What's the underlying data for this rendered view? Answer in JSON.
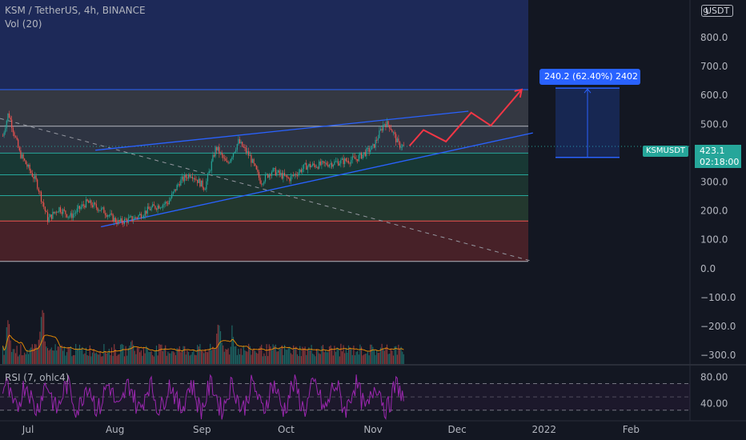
{
  "header": {
    "symbol_line": "KSM / TetherUS, 4h, BINANCE",
    "vol_indicator": "Vol (20)",
    "rsi_indicator": "RSI (7, ohlc4)"
  },
  "price_axis": {
    "currency_button": "USDT",
    "top_tick": "9",
    "ticks": [
      "800.0",
      "700.0",
      "600.0",
      "500.0",
      "300.0",
      "200.0",
      "100.0",
      "0.0",
      "−100.0",
      "−200.0",
      "−300.0"
    ],
    "tick_values": [
      800,
      700,
      600,
      500,
      300,
      200,
      100,
      0,
      -100,
      -200,
      -300
    ],
    "last_price": "423.1",
    "countdown": "02:18:00",
    "symbol_tag": "KSMUSDT"
  },
  "rsi_axis": {
    "ticks": [
      "80.00",
      "40.00"
    ]
  },
  "time_axis": {
    "labels": [
      "Jul",
      "Aug",
      "Sep",
      "Oct",
      "Nov",
      "Dec",
      "2022",
      "Feb"
    ]
  },
  "measure_label": "240.2 (62.40%) 2402",
  "colors": {
    "background": "#131722",
    "up": "#26a69a",
    "down": "#ef5350",
    "trendline": "#2962ff",
    "projection": "#f23645",
    "rsi": "#9c27b0",
    "measure": "#2962ff"
  },
  "chart_data": [
    {
      "type": "candlestick",
      "title": "KSM / TetherUS, 4h, BINANCE",
      "x_range": [
        "2021-06-21",
        "2022-02-22"
      ],
      "ylim": [
        -330,
        930
      ],
      "y_ticks": [
        0,
        100,
        200,
        300,
        500,
        600,
        700,
        800
      ],
      "last_price": 423.1,
      "price_path": [
        [
          "2021-06-22",
          460
        ],
        [
          "2021-06-24",
          540
        ],
        [
          "2021-06-28",
          400
        ],
        [
          "2021-07-04",
          300
        ],
        [
          "2021-07-08",
          170
        ],
        [
          "2021-07-12",
          210
        ],
        [
          "2021-07-16",
          180
        ],
        [
          "2021-07-22",
          230
        ],
        [
          "2021-07-28",
          200
        ],
        [
          "2021-08-02",
          160
        ],
        [
          "2021-08-08",
          175
        ],
        [
          "2021-08-14",
          210
        ],
        [
          "2021-08-20",
          230
        ],
        [
          "2021-08-24",
          300
        ],
        [
          "2021-08-28",
          330
        ],
        [
          "2021-09-02",
          280
        ],
        [
          "2021-09-06",
          420
        ],
        [
          "2021-09-10",
          360
        ],
        [
          "2021-09-14",
          440
        ],
        [
          "2021-09-18",
          390
        ],
        [
          "2021-09-22",
          300
        ],
        [
          "2021-09-26",
          340
        ],
        [
          "2021-10-02",
          310
        ],
        [
          "2021-10-08",
          355
        ],
        [
          "2021-10-14",
          360
        ],
        [
          "2021-10-20",
          370
        ],
        [
          "2021-10-26",
          380
        ],
        [
          "2021-11-01",
          420
        ],
        [
          "2021-11-05",
          505
        ],
        [
          "2021-11-07",
          495
        ],
        [
          "2021-11-10",
          430
        ],
        [
          "2021-11-12",
          423.1
        ]
      ],
      "horizontal_levels": [
        {
          "price": 620,
          "color": "#2962ff"
        },
        {
          "price": 493,
          "color": "#b2b5be"
        },
        {
          "price": 400,
          "color": "#26a69a"
        },
        {
          "price": 325,
          "color": "#26a69a"
        },
        {
          "price": 253,
          "color": "#26a69a"
        },
        {
          "price": 165,
          "color": "#ef5350"
        },
        {
          "price": 25,
          "color": "#b2b5be"
        }
      ],
      "zones": [
        {
          "from": 620,
          "to": 930,
          "color": "#1e2a5c"
        },
        {
          "from": 493,
          "to": 620,
          "color": "#363a45"
        },
        {
          "from": 400,
          "to": 493,
          "color": "#2f3644"
        },
        {
          "from": 325,
          "to": 400,
          "color": "#183a36"
        },
        {
          "from": 253,
          "to": 325,
          "color": "#1c3530"
        },
        {
          "from": 165,
          "to": 253,
          "color": "#243a2f"
        },
        {
          "from": 25,
          "to": 165,
          "color": "#4a2229"
        }
      ],
      "channel_upper": [
        [
          "2021-07-25",
          410
        ],
        [
          "2021-12-05",
          545
        ]
      ],
      "channel_lower": [
        [
          "2021-07-27",
          145
        ],
        [
          "2021-12-28",
          470
        ]
      ],
      "descending_line": [
        [
          "2021-06-21",
          520
        ],
        [
          "2021-12-28",
          25
        ]
      ],
      "projection_path": [
        [
          "2021-11-14",
          425
        ],
        [
          "2021-11-19",
          480
        ],
        [
          "2021-11-27",
          440
        ],
        [
          "2021-12-06",
          540
        ],
        [
          "2021-12-13",
          495
        ],
        [
          "2021-12-24",
          620
        ]
      ],
      "price_range_measure": {
        "from": 385,
        "to": 625,
        "change": 240.2,
        "percent": 62.4,
        "bars": 2402
      }
    },
    {
      "type": "bar",
      "title": "Vol (20)",
      "description": "volume histogram with 20-period moving average",
      "relative_peaks": [
        [
          "2021-06-24",
          0.65
        ],
        [
          "2021-07-06",
          1.0
        ],
        [
          "2021-08-07",
          0.45
        ],
        [
          "2021-09-07",
          0.72
        ],
        [
          "2021-09-12",
          0.5
        ],
        [
          "2021-11-05",
          0.25
        ]
      ]
    },
    {
      "type": "line",
      "title": "RSI (7, ohlc4)",
      "ylim": [
        14,
        96
      ],
      "y_ticks": [
        80,
        40
      ],
      "levels": [
        70,
        50,
        30
      ]
    }
  ]
}
